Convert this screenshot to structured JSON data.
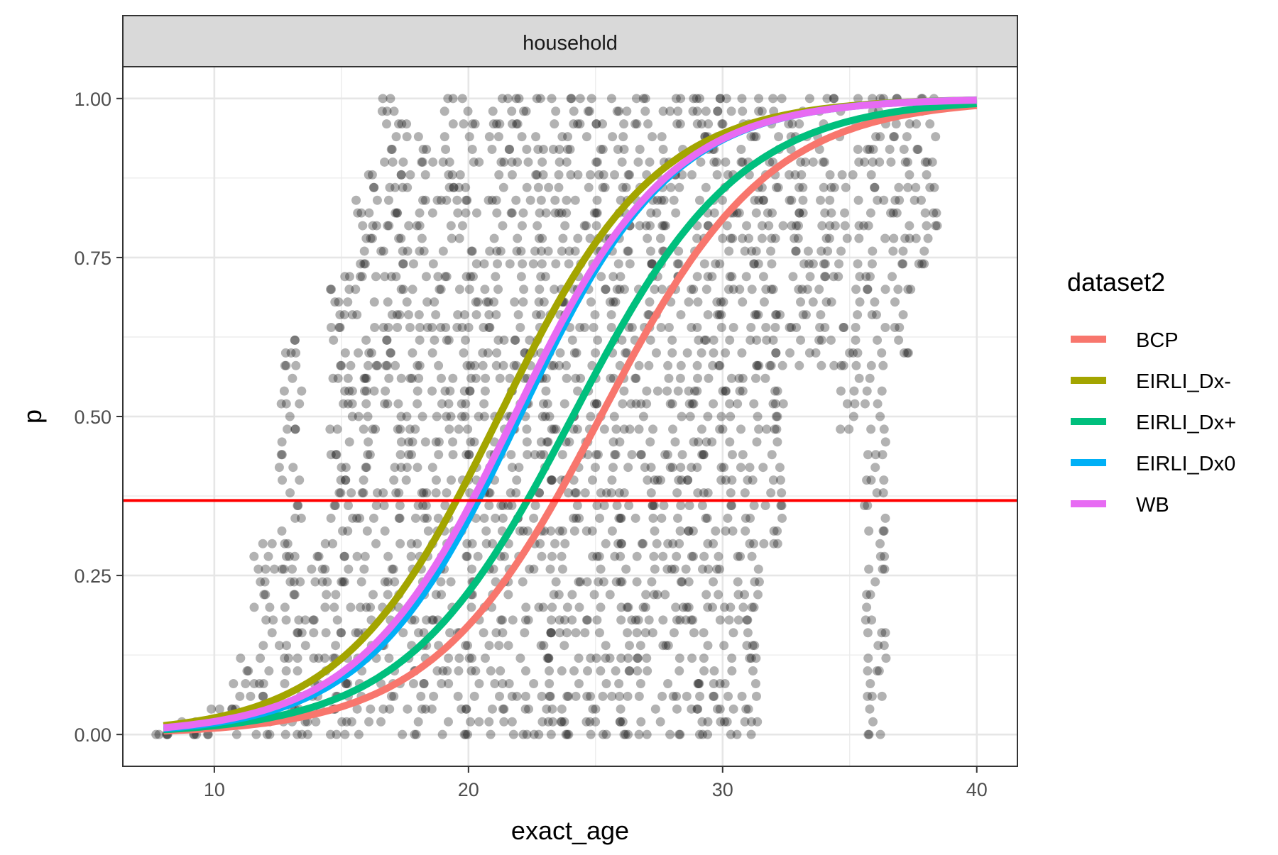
{
  "chart_data": {
    "type": "scatter",
    "facet_label": "household",
    "xlabel": "exact_age",
    "ylabel": "p",
    "xlim": [
      6.4,
      41.6
    ],
    "ylim": [
      -0.05,
      1.05
    ],
    "x_ticks": [
      10,
      20,
      30,
      40
    ],
    "x_tick_labels": [
      "10",
      "20",
      "30",
      "40"
    ],
    "y_ticks": [
      0,
      0.25,
      0.5,
      0.75,
      1
    ],
    "y_tick_labels": [
      "0.00",
      "0.25",
      "0.50",
      "0.75",
      "1.00"
    ],
    "grid": true,
    "theme": "bw",
    "hline": {
      "y": 0.368,
      "color": "#ff0000"
    },
    "points_color": "#000000",
    "points_alpha": 0.3,
    "point_columns": [
      {
        "x": 8,
        "y_min": 0,
        "y_max": 0
      },
      {
        "x": 9,
        "y_min": 0,
        "y_max": 0.02
      },
      {
        "x": 10,
        "y_min": 0,
        "y_max": 0.04
      },
      {
        "x": 11,
        "y_min": 0,
        "y_max": 0.12
      },
      {
        "x": 12,
        "y_min": 0,
        "y_max": 0.3
      },
      {
        "x": 13,
        "y_min": 0,
        "y_max": 0.62
      },
      {
        "x": 14,
        "y_min": 0,
        "y_max": 0.3
      },
      {
        "x": 15,
        "y_min": 0,
        "y_max": 0.72
      },
      {
        "x": 16,
        "y_min": 0,
        "y_max": 0.88
      },
      {
        "x": 17,
        "y_min": 0,
        "y_max": 1.0
      },
      {
        "x": 18,
        "y_min": 0,
        "y_max": 0.96
      },
      {
        "x": 19,
        "y_min": 0,
        "y_max": 1.0
      },
      {
        "x": 20,
        "y_min": 0,
        "y_max": 1.0
      },
      {
        "x": 21,
        "y_min": 0,
        "y_max": 1.0
      },
      {
        "x": 22,
        "y_min": 0,
        "y_max": 1.0
      },
      {
        "x": 23,
        "y_min": 0,
        "y_max": 1.0
      },
      {
        "x": 24,
        "y_min": 0,
        "y_max": 1.0
      },
      {
        "x": 25,
        "y_min": 0,
        "y_max": 1.0
      },
      {
        "x": 26,
        "y_min": 0,
        "y_max": 1.0
      },
      {
        "x": 27,
        "y_min": 0,
        "y_max": 1.0
      },
      {
        "x": 28,
        "y_min": 0,
        "y_max": 1.0
      },
      {
        "x": 29,
        "y_min": 0,
        "y_max": 1.0
      },
      {
        "x": 30,
        "y_min": 0,
        "y_max": 1.0
      },
      {
        "x": 31,
        "y_min": 0,
        "y_max": 1.0
      },
      {
        "x": 32,
        "y_min": 0.3,
        "y_max": 1.0
      },
      {
        "x": 33,
        "y_min": 0.58,
        "y_max": 1.0
      },
      {
        "x": 34,
        "y_min": 0.58,
        "y_max": 1.0
      },
      {
        "x": 35,
        "y_min": 0.48,
        "y_max": 1.0
      },
      {
        "x": 36,
        "y_min": 0,
        "y_max": 1.0
      },
      {
        "x": 37,
        "y_min": 0.6,
        "y_max": 1.0
      },
      {
        "x": 38,
        "y_min": 0.74,
        "y_max": 1.0
      }
    ],
    "series": [
      {
        "name": "BCP",
        "color": "#F8766D",
        "x0": 25.2,
        "scale": 3.3,
        "x_range": [
          8,
          40
        ]
      },
      {
        "name": "EIRLI_Dx-",
        "color": "#A3A500",
        "x0": 21.2,
        "scale": 3.1,
        "x_range": [
          8,
          40
        ]
      },
      {
        "name": "EIRLI_Dx+",
        "color": "#00BF7D",
        "x0": 24.1,
        "scale": 3.3,
        "x_range": [
          8,
          40
        ]
      },
      {
        "name": "EIRLI_Dx0",
        "color": "#00B0F6",
        "x0": 22.0,
        "scale": 3.0,
        "x_range": [
          8,
          40
        ]
      },
      {
        "name": "WB",
        "color": "#E76BF3",
        "x0": 21.8,
        "scale": 3.05,
        "x_range": [
          8,
          40
        ]
      }
    ],
    "legend": {
      "title": "dataset2",
      "position": "right"
    }
  }
}
